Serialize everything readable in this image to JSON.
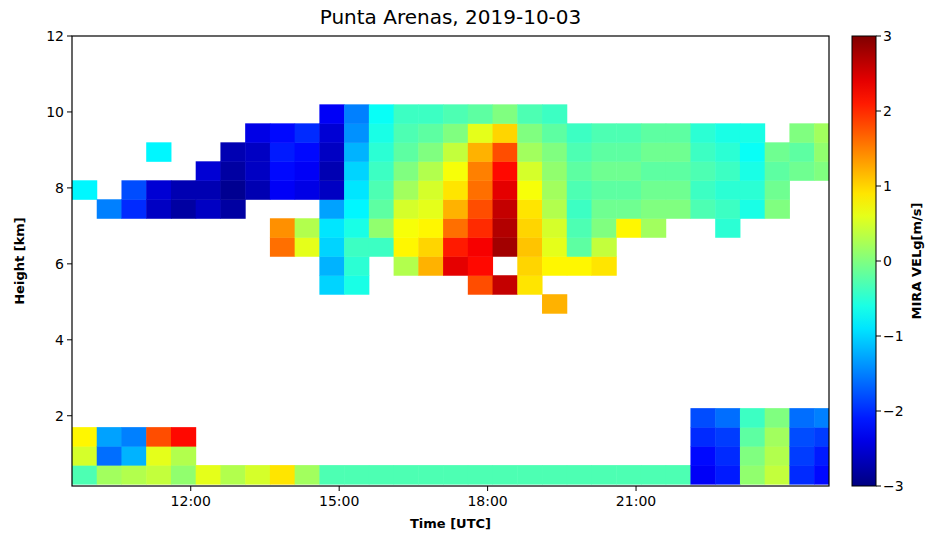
{
  "chart_data": {
    "type": "heatmap",
    "title": "Punta Arenas, 2019-10-03",
    "x_label": "Time [UTC]",
    "y_label": "Height [km]",
    "color": "jet",
    "x": [
      9.6,
      10.1,
      10.6,
      11.1,
      11.6,
      12.1,
      12.6,
      13.1,
      13.6,
      14.1,
      14.6,
      15.1,
      15.6,
      16.1,
      16.6,
      17.1,
      17.6,
      18.1,
      18.6,
      19.1,
      19.6,
      20.1,
      20.6,
      21.1,
      21.6,
      22.1,
      22.6,
      23.1,
      23.6,
      24.1,
      24.6,
      25.1
    ],
    "y": [
      0.2,
      0.7,
      1.2,
      1.7,
      2.2,
      2.7,
      3.2,
      3.7,
      4.2,
      4.7,
      5.2,
      5.7,
      6.2,
      6.7,
      7.2,
      7.7,
      8.2,
      8.7,
      9.2,
      9.7,
      10.2
    ],
    "cells": [
      [
        -0.3,
        0.5,
        0.8,
        null,
        null,
        null,
        null,
        null,
        null,
        null,
        null,
        null,
        null,
        null,
        null,
        -0.8,
        null,
        null,
        null,
        null
      ],
      [
        0.2,
        -1.6,
        -1.3,
        null,
        null,
        null,
        null,
        null,
        null,
        null,
        null,
        null,
        null,
        null,
        -1.5,
        null,
        null,
        null,
        null,
        null
      ],
      [
        0.3,
        -1.2,
        -1.5,
        null,
        null,
        null,
        null,
        null,
        null,
        null,
        null,
        null,
        null,
        null,
        -2.0,
        -1.8,
        null,
        null,
        null,
        null
      ],
      [
        0.4,
        0.6,
        1.8,
        null,
        null,
        null,
        null,
        null,
        null,
        null,
        null,
        null,
        null,
        null,
        -2.6,
        -2.5,
        null,
        -0.8,
        null,
        null
      ],
      [
        0.1,
        0.3,
        2.2,
        null,
        null,
        null,
        null,
        null,
        null,
        null,
        null,
        null,
        null,
        null,
        -2.8,
        -2.7,
        null,
        null,
        null,
        null
      ],
      [
        0.6,
        null,
        null,
        null,
        null,
        null,
        null,
        null,
        null,
        null,
        null,
        null,
        null,
        null,
        -2.6,
        -2.7,
        -2.5,
        null,
        null,
        null
      ],
      [
        0.3,
        null,
        null,
        null,
        null,
        null,
        null,
        null,
        null,
        null,
        null,
        null,
        null,
        null,
        -2.8,
        -2.9,
        -2.8,
        -2.7,
        null,
        null
      ],
      [
        0.5,
        null,
        null,
        null,
        null,
        null,
        null,
        null,
        null,
        null,
        null,
        null,
        null,
        null,
        null,
        -2.7,
        -2.6,
        -2.6,
        -2.4,
        null
      ],
      [
        0.9,
        null,
        null,
        null,
        null,
        null,
        null,
        null,
        null,
        null,
        null,
        null,
        1.6,
        1.4,
        null,
        -2.3,
        -2.2,
        -2.1,
        -2.2,
        null
      ],
      [
        0.2,
        null,
        null,
        null,
        null,
        null,
        null,
        null,
        null,
        null,
        null,
        null,
        0.6,
        0.3,
        null,
        -2.4,
        -2.3,
        -2.2,
        -2.0,
        null
      ],
      [
        -0.3,
        null,
        null,
        null,
        null,
        null,
        null,
        null,
        null,
        null,
        -1.0,
        -1.2,
        -1.0,
        -0.9,
        -1.3,
        -2.6,
        -2.7,
        -2.6,
        -2.5,
        -2.3
      ],
      [
        -0.3,
        null,
        null,
        null,
        null,
        null,
        null,
        null,
        null,
        null,
        -0.6,
        -0.5,
        -0.4,
        -0.6,
        -0.8,
        -0.9,
        -1.0,
        -1.2,
        -1.4,
        -1.5
      ],
      [
        -0.3,
        null,
        null,
        null,
        null,
        null,
        null,
        null,
        null,
        null,
        null,
        null,
        -0.4,
        0.1,
        -0.2,
        -0.3,
        -0.4,
        -0.5,
        -0.6,
        -0.7
      ],
      [
        -0.3,
        null,
        null,
        null,
        null,
        null,
        null,
        null,
        null,
        null,
        null,
        0.3,
        0.8,
        0.7,
        0.5,
        0.2,
        0.0,
        -0.2,
        -0.3,
        -0.4
      ],
      [
        -0.3,
        null,
        null,
        null,
        null,
        null,
        null,
        null,
        null,
        null,
        null,
        1.2,
        1.0,
        0.8,
        0.6,
        0.5,
        0.3,
        0.0,
        -0.2,
        -0.4
      ],
      [
        -0.3,
        null,
        null,
        null,
        null,
        null,
        null,
        null,
        null,
        null,
        null,
        2.4,
        2.1,
        1.6,
        1.2,
        0.9,
        0.7,
        0.4,
        0.0,
        -0.3
      ],
      [
        -0.3,
        null,
        null,
        null,
        null,
        null,
        null,
        null,
        null,
        null,
        1.8,
        2.2,
        2.3,
        2.0,
        1.8,
        1.6,
        1.5,
        1.2,
        0.6,
        -0.2
      ],
      [
        -0.3,
        null,
        null,
        null,
        null,
        null,
        null,
        null,
        null,
        null,
        2.6,
        null,
        2.8,
        2.7,
        2.6,
        2.4,
        2.2,
        1.8,
        1.0,
        0.0
      ],
      [
        -0.3,
        null,
        null,
        null,
        null,
        null,
        null,
        null,
        null,
        null,
        0.9,
        1.0,
        1.1,
        1.0,
        0.9,
        0.7,
        0.5,
        0.2,
        0.0,
        -0.3
      ],
      [
        -0.3,
        null,
        null,
        null,
        null,
        null,
        null,
        null,
        null,
        1.2,
        null,
        0.8,
        0.6,
        0.5,
        0.3,
        0.2,
        0.1,
        0.0,
        -0.2,
        -0.4
      ],
      [
        -0.3,
        null,
        null,
        null,
        null,
        null,
        null,
        null,
        null,
        null,
        null,
        0.8,
        -0.2,
        -0.3,
        -0.4,
        -0.3,
        -0.2,
        -0.3,
        -0.4,
        null
      ],
      [
        -0.3,
        null,
        null,
        null,
        null,
        null,
        null,
        null,
        null,
        null,
        null,
        0.9,
        0.4,
        0.0,
        -0.1,
        -0.2,
        -0.1,
        -0.2,
        -0.3,
        null
      ],
      [
        -0.3,
        null,
        null,
        null,
        null,
        null,
        null,
        null,
        null,
        null,
        null,
        null,
        null,
        0.8,
        -0.1,
        -0.2,
        -0.1,
        -0.2,
        -0.3,
        null
      ],
      [
        -0.3,
        null,
        null,
        null,
        null,
        null,
        null,
        null,
        null,
        null,
        null,
        null,
        null,
        0.2,
        0.0,
        -0.1,
        -0.2,
        -0.1,
        -0.2,
        null
      ],
      [
        -0.3,
        null,
        null,
        null,
        null,
        null,
        null,
        null,
        null,
        null,
        null,
        null,
        null,
        null,
        0.0,
        -0.1,
        -0.2,
        -0.1,
        -0.2,
        null
      ],
      [
        -2.3,
        -2.2,
        -2.0,
        -1.8,
        null,
        null,
        null,
        null,
        null,
        null,
        null,
        null,
        null,
        null,
        -0.3,
        -0.4,
        -0.3,
        -0.4,
        -0.5,
        null
      ],
      [
        -2.1,
        -2.0,
        -1.9,
        -1.6,
        null,
        null,
        null,
        null,
        null,
        null,
        null,
        null,
        null,
        -0.5,
        -0.4,
        -0.5,
        -0.4,
        -0.5,
        -0.6,
        null
      ],
      [
        0.1,
        0.0,
        -0.2,
        -0.4,
        null,
        null,
        null,
        null,
        null,
        null,
        null,
        null,
        null,
        null,
        -0.6,
        -0.5,
        -0.6,
        -0.7,
        -0.6,
        null
      ],
      [
        0.4,
        0.3,
        0.2,
        0.0,
        null,
        null,
        null,
        null,
        null,
        null,
        null,
        null,
        null,
        null,
        0.0,
        -0.1,
        -0.2,
        -0.1,
        null,
        null
      ],
      [
        -2.0,
        -1.9,
        -1.8,
        -1.6,
        null,
        null,
        null,
        null,
        null,
        null,
        null,
        null,
        null,
        null,
        null,
        null,
        -0.1,
        -0.2,
        0.0,
        null
      ],
      [
        -2.2,
        -2.1,
        -1.9,
        -1.5,
        null,
        null,
        null,
        null,
        null,
        null,
        null,
        null,
        null,
        null,
        null,
        null,
        0.0,
        0.1,
        0.2,
        null
      ]
    ],
    "xlim": [
      9.6,
      24.9
    ],
    "xticks": [
      {
        "value": 12,
        "label": "12:00"
      },
      {
        "value": 15,
        "label": "15:00"
      },
      {
        "value": 18,
        "label": "18:00"
      },
      {
        "value": 21,
        "label": "21:00"
      }
    ],
    "ylim": [
      0.15,
      12
    ],
    "yticks": [
      2,
      4,
      6,
      8,
      10,
      12
    ],
    "color_label": "MIRA VELg[m/s]",
    "color_range": [
      -3,
      3
    ],
    "color_ticks": [
      {
        "value": -3,
        "label": "−3"
      },
      {
        "value": -2,
        "label": "−2"
      },
      {
        "value": -1,
        "label": "−1"
      },
      0,
      1,
      2,
      3
    ]
  }
}
